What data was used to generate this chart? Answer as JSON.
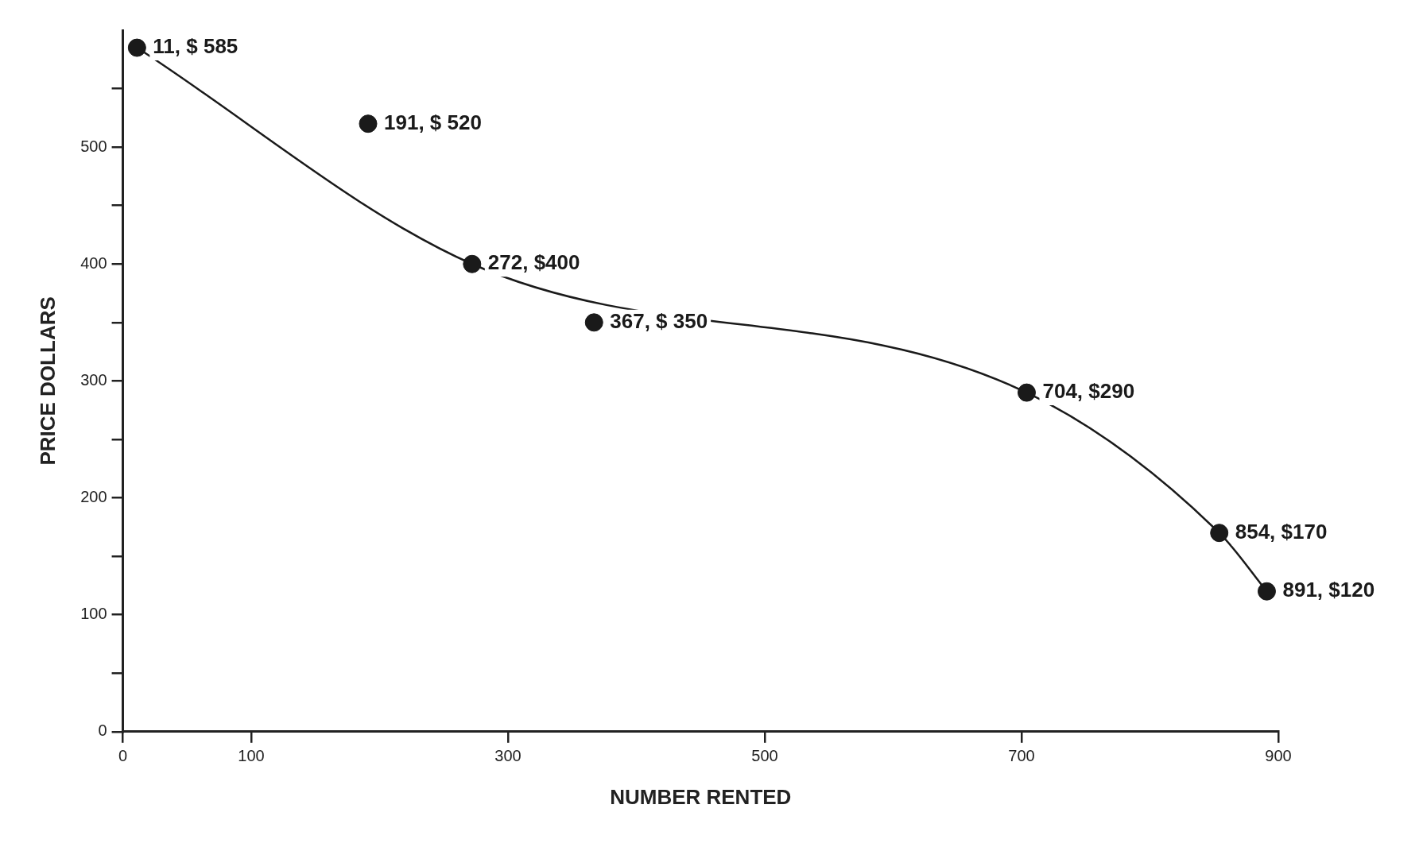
{
  "chart_data": {
    "type": "scatter",
    "xlabel": "NUMBER RENTED",
    "ylabel": "PRICE DOLLARS",
    "xlim": [
      0,
      900
    ],
    "xticks": [
      0,
      100,
      300,
      500,
      700,
      900
    ],
    "ylim": [
      0,
      600
    ],
    "yticks": [
      0,
      {
        "value": 50,
        "label": null
      },
      100,
      {
        "value": 150,
        "label": null
      },
      200,
      {
        "value": 250,
        "label": null
      },
      300,
      {
        "value": 350,
        "label": null
      },
      400,
      {
        "value": 450,
        "label": null
      },
      500,
      {
        "value": 550,
        "label": null
      }
    ],
    "grid": false,
    "legend": false,
    "marker": "circle",
    "series": [
      {
        "color": "#1a1a1a",
        "x": [
          11,
          191,
          272,
          367,
          704,
          854,
          891
        ],
        "values": [
          585,
          520,
          400,
          350,
          290,
          170,
          120
        ],
        "value_labels": [
          "11, $ 585",
          "191, $ 520",
          "272, $400",
          "367, $ 350",
          "704, $290",
          "854, $170",
          "891, $120"
        ]
      },
      {
        "type": "line",
        "color": "#1a1a1a",
        "line_style": "solid",
        "marker": "none",
        "x": [
          11,
          272,
          704,
          854,
          891
        ],
        "values": [
          585,
          400,
          290,
          170,
          120
        ]
      }
    ]
  }
}
